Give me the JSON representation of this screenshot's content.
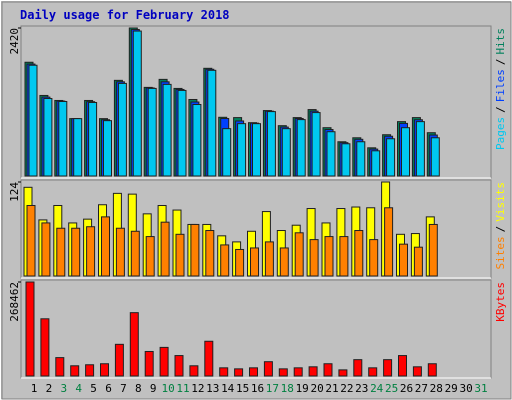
{
  "chart_data": [
    {
      "type": "bar",
      "title": "Daily usage for February 2018",
      "legend_separator": "/",
      "ylim": [
        0,
        2420
      ],
      "yticks": [
        2420
      ],
      "series": [
        {
          "name": "Hits",
          "color": "#00805c",
          "values": [
            1860,
            1317,
            1235,
            938,
            1235,
            938,
            1564,
            2420,
            1449,
            1580,
            1432,
            1251,
            1761,
            960,
            955,
            872,
            1070,
            823,
            955,
            1086,
            790,
            560,
            625,
            461,
            675,
            889,
            955,
            708,
            null,
            null,
            null
          ]
        },
        {
          "name": "Files",
          "color": "#0040ff",
          "values": [
            1830,
            1290,
            1225,
            938,
            1215,
            920,
            1540,
            2395,
            1440,
            1540,
            1415,
            1210,
            1745,
            940,
            900,
            864,
            1060,
            800,
            940,
            1060,
            760,
            545,
            600,
            440,
            650,
            860,
            920,
            670,
            null,
            null,
            null
          ]
        },
        {
          "name": "Pages",
          "color": "#00c8f0",
          "values": [
            1811,
            1267,
            1218,
            938,
            1202,
            905,
            1514,
            2370,
            1432,
            1498,
            1399,
            1169,
            1728,
            774,
            856,
            856,
            1053,
            774,
            922,
            1037,
            724,
            527,
            560,
            412,
            609,
            790,
            889,
            625,
            null,
            null,
            null
          ]
        }
      ]
    },
    {
      "type": "bar",
      "legend_separator": "/",
      "ylim": [
        0,
        124
      ],
      "yticks": [
        124
      ],
      "series": [
        {
          "name": "Visits",
          "color": "#ffff00",
          "values": [
            117,
            74,
            93,
            70,
            75,
            94,
            109,
            108,
            82,
            93,
            87,
            68,
            68,
            53,
            45,
            59,
            85,
            60,
            67,
            89,
            70,
            89,
            91,
            90,
            124,
            55,
            56,
            78,
            null,
            null,
            null
          ]
        },
        {
          "name": "Sites",
          "color": "#ff8000",
          "values": [
            93,
            70,
            63,
            63,
            65,
            78,
            63,
            59,
            52,
            71,
            55,
            68,
            60,
            41,
            35,
            37,
            45,
            37,
            57,
            48,
            52,
            52,
            60,
            48,
            90,
            42,
            38,
            68,
            null,
            null,
            null
          ]
        }
      ]
    },
    {
      "type": "bar",
      "ylim": [
        0,
        268462
      ],
      "yticks": [
        268462
      ],
      "categories": [
        "1",
        "2",
        "3",
        "4",
        "5",
        "6",
        "7",
        "8",
        "9",
        "10",
        "11",
        "12",
        "13",
        "14",
        "15",
        "16",
        "17",
        "18",
        "19",
        "20",
        "21",
        "22",
        "23",
        "24",
        "25",
        "26",
        "27",
        "28",
        "29",
        "30",
        "31"
      ],
      "category_colors": [
        "#000000",
        "#000000",
        "#008040",
        "#008040",
        "#000000",
        "#000000",
        "#000000",
        "#000000",
        "#000000",
        "#008040",
        "#008040",
        "#000000",
        "#000000",
        "#000000",
        "#000000",
        "#000000",
        "#008040",
        "#008040",
        "#000000",
        "#000000",
        "#000000",
        "#000000",
        "#000000",
        "#008040",
        "#008040",
        "#000000",
        "#000000",
        "#000000",
        "#000000",
        "#000000",
        "#008040"
      ],
      "series": [
        {
          "name": "KBytes",
          "color": "#ff0000",
          "values": [
            268462,
            163408,
            52524,
            29180,
            32098,
            35016,
            90458,
            180916,
            70032,
            81704,
            58360,
            29180,
            99212,
            23344,
            20426,
            23344,
            40852,
            20426,
            23344,
            26262,
            35016,
            17508,
            46688,
            23344,
            46688,
            58360,
            26262,
            35016,
            null,
            null,
            null
          ]
        }
      ]
    }
  ]
}
